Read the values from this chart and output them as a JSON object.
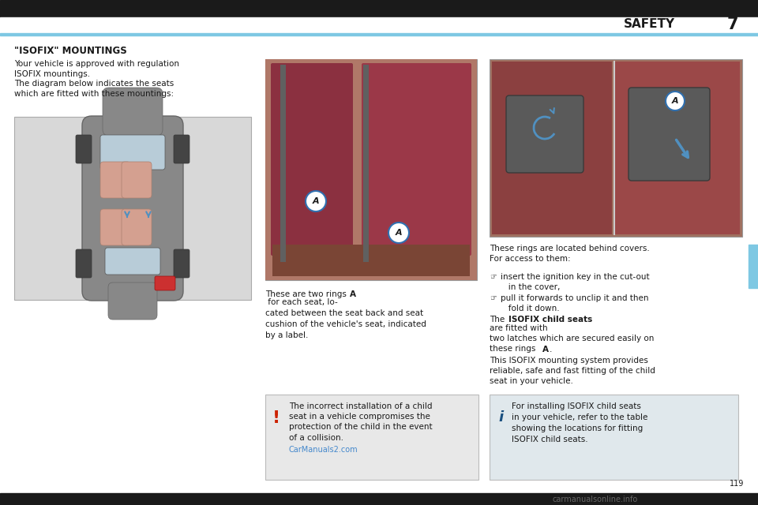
{
  "page_bg": "#ffffff",
  "header_bar_color": "#1a1a1a",
  "header_line_color": "#7ec8e3",
  "header_title": "SAFETY",
  "header_number": "7",
  "section_title": "\"ISOFIX\" MOUNTINGS",
  "body_text_1": "Your vehicle is approved with regulation\nISOFIX mountings.",
  "body_text_2": "The diagram below indicates the seats\nwhich are fitted with these mountings:",
  "caption_left_1": "These are two rings ",
  "caption_left_A": "A",
  "caption_left_2": " for each seat, lo-\ncated between the seat back and seat\ncushion of the vehicle's seat, indicated\nby a label.",
  "caption_right_1": "These rings are located behind covers.\nFor access to them:",
  "caption_right_bullet1_a": "insert the ignition key in the cut-out\n  in the cover,",
  "caption_right_bullet2_a": "pull it forwards to unclip it and then\n  fold it down.",
  "caption_right_bold_pre": "The ",
  "caption_right_bold_mid": "ISOFIX child seats",
  "caption_right_bold_post": " are fitted with\ntwo latches which are secured easily on\nthese rings ",
  "caption_right_bold_A": "A",
  "caption_right_bold_end": ".",
  "caption_right_3": "This ISOFIX mounting system provides\nreliable, safe and fast fitting of the child\nseat in your vehicle.",
  "warning_text": "The incorrect installation of a child\nseat in a vehicle compromises the\nprotection of the child in the event\nof a collision.",
  "info_text": "For installing ISOFIX child seats\nin your vehicle, refer to the table\nshowing the locations for fitting\nISOFIX child seats.",
  "warning_box_color": "#e8e8e8",
  "info_box_color": "#e0e8ec",
  "right_tab_color": "#7ec8e3",
  "watermark_text": "CarManuals2.com",
  "page_number": "119",
  "seat_photo_color": "#9b5060",
  "seat_photo_bg": "#b06070",
  "cover_photo_color": "#9b5060",
  "cover_photo_bg": "#a87060"
}
